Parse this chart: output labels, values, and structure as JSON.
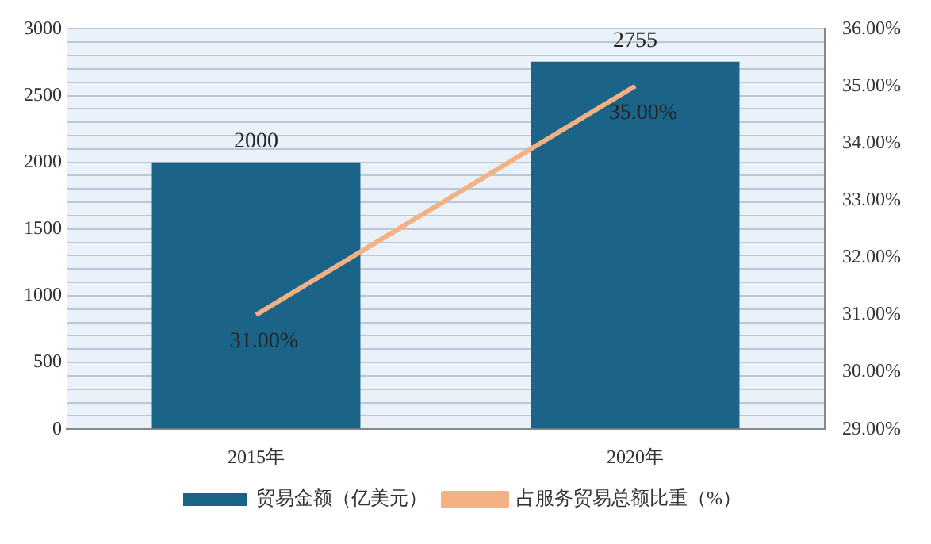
{
  "chart_data": {
    "type": "bar",
    "categories": [
      "2015年",
      "2020年"
    ],
    "series": [
      {
        "name": "贸易金额（亿美元）",
        "color": "#1b6488",
        "values": [
          2000,
          2755
        ]
      },
      {
        "name": "占服务贸易总额比重（%）",
        "type": "line",
        "axis": "y2",
        "color": "#f4b183",
        "values": [
          31,
          35
        ],
        "value_labels": [
          "31.00%",
          "35.00%"
        ]
      }
    ],
    "ylim": [
      0,
      3000
    ],
    "yticks": [
      0,
      {
        "value": 100,
        "label": null
      },
      {
        "value": 200,
        "label": null
      },
      {
        "value": 300,
        "label": null
      },
      {
        "value": 400,
        "label": null
      },
      500,
      {
        "value": 600,
        "label": null
      },
      {
        "value": 700,
        "label": null
      },
      {
        "value": 800,
        "label": null
      },
      {
        "value": 900,
        "label": null
      },
      1000,
      {
        "value": 1100,
        "label": null
      },
      {
        "value": 1200,
        "label": null
      },
      {
        "value": 1300,
        "label": null
      },
      {
        "value": 1400,
        "label": null
      },
      1500,
      {
        "value": 1600,
        "label": null
      },
      {
        "value": 1700,
        "label": null
      },
      {
        "value": 1800,
        "label": null
      },
      {
        "value": 1900,
        "label": null
      },
      2000,
      {
        "value": 2100,
        "label": null
      },
      {
        "value": 2200,
        "label": null
      },
      {
        "value": 2300,
        "label": null
      },
      {
        "value": 2400,
        "label": null
      },
      2500,
      {
        "value": 2600,
        "label": null
      },
      {
        "value": 2700,
        "label": null
      },
      {
        "value": 2800,
        "label": null
      },
      {
        "value": 2900,
        "label": null
      },
      3000
    ],
    "y2lim": [
      29,
      36
    ],
    "y2ticks": [
      {
        "value": 29,
        "label": "29.00%"
      },
      {
        "value": 30,
        "label": "30.00%"
      },
      {
        "value": 31,
        "label": "31.00%"
      },
      {
        "value": 32,
        "label": "32.00%"
      },
      {
        "value": 33,
        "label": "33.00%"
      },
      {
        "value": 34,
        "label": "34.00%"
      },
      {
        "value": 35,
        "label": "35.00%"
      },
      {
        "value": 36,
        "label": "36.00%"
      }
    ],
    "grid": "y",
    "legend": "bottom",
    "data_labels": true,
    "marker": "none",
    "line_style": "solid"
  }
}
